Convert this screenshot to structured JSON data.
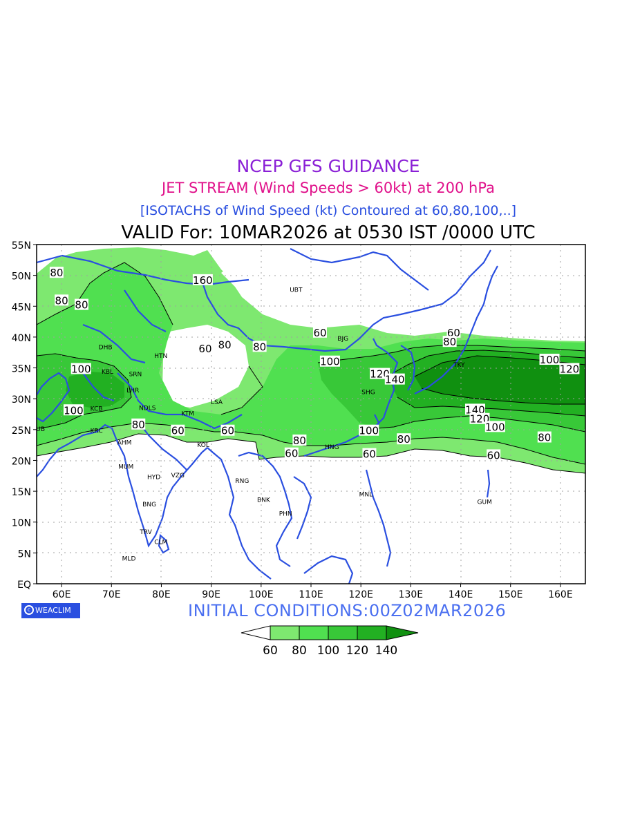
{
  "title": "NCEP GFS GUIDANCE",
  "subtitle": "JET STREAM (Wind Speeds > 60kt) at 200 hPa",
  "description": "[ISOTACHS of Wind Speed (kt) Contoured at 60,80,100,..]",
  "valid": "VALID For: 10MAR2026 at 0530 IST /0000 UTC",
  "initial_conditions": "INITIAL CONDITIONS:00Z02MAR2026",
  "logo_text": "WEACLIM",
  "logo_icon": "copyright-circle-icon",
  "map": {
    "lon_range": [
      55,
      165
    ],
    "lat_range": [
      0,
      55
    ],
    "lat_ticks": [
      "55N",
      "50N",
      "45N",
      "40N",
      "35N",
      "30N",
      "25N",
      "20N",
      "15N",
      "10N",
      "5N",
      "EQ"
    ],
    "lon_ticks": [
      "60E",
      "70E",
      "80E",
      "90E",
      "100E",
      "110E",
      "120E",
      "130E",
      "140E",
      "150E",
      "160E"
    ],
    "colors": {
      "60": "#7ee870",
      "80": "#50e050",
      "100": "#38c838",
      "120": "#22b022",
      "140": "#109010",
      "coast": "#2a4fe0"
    },
    "cities": [
      {
        "code": "UBT",
        "lon": 107,
        "lat": 47.8
      },
      {
        "code": "BJG",
        "lon": 116.4,
        "lat": 39.9
      },
      {
        "code": "TKY",
        "lon": 139.7,
        "lat": 35.6
      },
      {
        "code": "SHG",
        "lon": 121.5,
        "lat": 31.2
      },
      {
        "code": "HTN",
        "lon": 79.9,
        "lat": 37.1
      },
      {
        "code": "DHB",
        "lon": 68.8,
        "lat": 38.5
      },
      {
        "code": "KBL",
        "lon": 69.2,
        "lat": 34.5
      },
      {
        "code": "SRN",
        "lon": 74.8,
        "lat": 34.1
      },
      {
        "code": "LHR",
        "lon": 74.3,
        "lat": 31.5
      },
      {
        "code": "KCB",
        "lon": 67.0,
        "lat": 28.5
      },
      {
        "code": "NDLS",
        "lon": 77.2,
        "lat": 28.6
      },
      {
        "code": "KTM",
        "lon": 85.3,
        "lat": 27.7
      },
      {
        "code": "LSA",
        "lon": 91.1,
        "lat": 29.6
      },
      {
        "code": "DUB",
        "lon": 55.3,
        "lat": 25.2
      },
      {
        "code": "KRC",
        "lon": 67.0,
        "lat": 24.9
      },
      {
        "code": "AHM",
        "lon": 72.6,
        "lat": 23.0
      },
      {
        "code": "KOL",
        "lon": 88.4,
        "lat": 22.6
      },
      {
        "code": "MUM",
        "lon": 72.9,
        "lat": 19.1
      },
      {
        "code": "HYD",
        "lon": 78.5,
        "lat": 17.4
      },
      {
        "code": "VZG",
        "lon": 83.3,
        "lat": 17.7
      },
      {
        "code": "RNG",
        "lon": 96.2,
        "lat": 16.8
      },
      {
        "code": "HNG",
        "lon": 114.2,
        "lat": 22.3
      },
      {
        "code": "HNI",
        "lon": 105.8,
        "lat": 21.0
      },
      {
        "code": "TPE",
        "lon": 121.5,
        "lat": 25.0
      },
      {
        "code": "MNL",
        "lon": 121.0,
        "lat": 14.6
      },
      {
        "code": "BNK",
        "lon": 100.5,
        "lat": 13.7
      },
      {
        "code": "PHN",
        "lon": 104.9,
        "lat": 11.5
      },
      {
        "code": "GUM",
        "lon": 144.8,
        "lat": 13.4
      },
      {
        "code": "BNG",
        "lon": 77.6,
        "lat": 13.0
      },
      {
        "code": "TRV",
        "lon": 76.9,
        "lat": 8.5
      },
      {
        "code": "CLM",
        "lon": 79.9,
        "lat": 6.9
      },
      {
        "code": "MLD",
        "lon": 73.5,
        "lat": 4.2
      }
    ],
    "contour_labels": [
      {
        "text": "80",
        "lon": 59,
        "lat": 50.5
      },
      {
        "text": "80",
        "lon": 60,
        "lat": 46
      },
      {
        "text": "80",
        "lon": 64,
        "lat": 45.3
      },
      {
        "text": "160",
        "lon": 88.3,
        "lat": 49.3
      },
      {
        "text": "60",
        "lon": 111.8,
        "lat": 40.8
      },
      {
        "text": "60",
        "lon": 138.6,
        "lat": 40.8
      },
      {
        "text": "80",
        "lon": 137.8,
        "lat": 39.3
      },
      {
        "text": "60",
        "lon": 88.8,
        "lat": 38.2
      },
      {
        "text": "80",
        "lon": 92.7,
        "lat": 38.8
      },
      {
        "text": "80",
        "lon": 99.7,
        "lat": 38.5
      },
      {
        "text": "100",
        "lon": 113.8,
        "lat": 36.1
      },
      {
        "text": "100",
        "lon": 157.8,
        "lat": 36.4
      },
      {
        "text": "120",
        "lon": 161.8,
        "lat": 34.9
      },
      {
        "text": "120",
        "lon": 123.8,
        "lat": 34.1
      },
      {
        "text": "140",
        "lon": 126.8,
        "lat": 33.2
      },
      {
        "text": "100",
        "lon": 63.9,
        "lat": 34.9
      },
      {
        "text": "100",
        "lon": 62.4,
        "lat": 28.2
      },
      {
        "text": "140",
        "lon": 142.9,
        "lat": 28.3
      },
      {
        "text": "120",
        "lon": 143.8,
        "lat": 26.8
      },
      {
        "text": "100",
        "lon": 146.9,
        "lat": 25.5
      },
      {
        "text": "80",
        "lon": 75.4,
        "lat": 25.9
      },
      {
        "text": "60",
        "lon": 83.3,
        "lat": 24.9
      },
      {
        "text": "60",
        "lon": 93.3,
        "lat": 24.9
      },
      {
        "text": "100",
        "lon": 121.6,
        "lat": 24.9
      },
      {
        "text": "80",
        "lon": 128.6,
        "lat": 23.5
      },
      {
        "text": "80",
        "lon": 156.8,
        "lat": 23.8
      },
      {
        "text": "80",
        "lon": 107.7,
        "lat": 23.3
      },
      {
        "text": "60",
        "lon": 106.1,
        "lat": 21.2
      },
      {
        "text": "60",
        "lon": 121.7,
        "lat": 21.1
      },
      {
        "text": "60",
        "lon": 146.6,
        "lat": 20.9
      }
    ]
  },
  "legend": {
    "labels": [
      "60",
      "80",
      "100",
      "120",
      "140"
    ]
  }
}
